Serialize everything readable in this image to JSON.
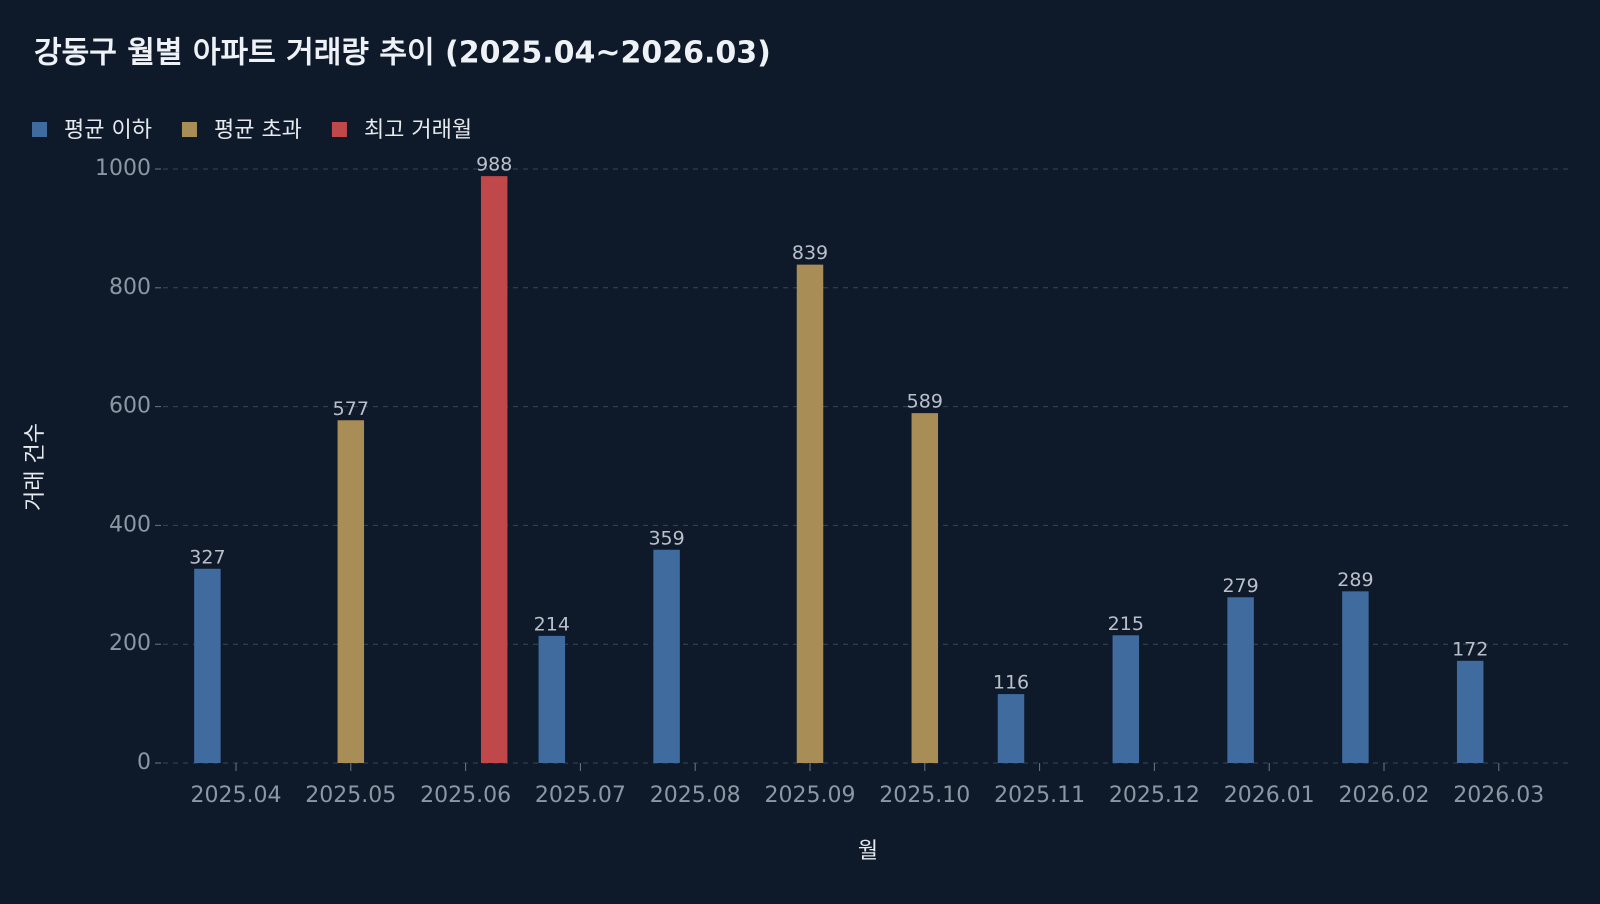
{
  "chart_data": {
    "type": "bar",
    "title": "강동구 월별 아파트 거래량 추이 (2025.04~2026.03)",
    "x_label": "월",
    "y_label": "거래 건수",
    "categories": [
      "2025.04",
      "2025.05",
      "2025.06",
      "2025.07",
      "2025.08",
      "2025.09",
      "2025.10",
      "2025.11",
      "2025.12",
      "2026.01",
      "2026.02",
      "2026.03"
    ],
    "series": [
      {
        "name": "평균 이하",
        "color": "#3f6b9e",
        "values": [
          327,
          null,
          null,
          214,
          359,
          null,
          null,
          116,
          215,
          279,
          289,
          172
        ]
      },
      {
        "name": "평균 초과",
        "color": "#a88d56",
        "values": [
          null,
          577,
          null,
          null,
          null,
          839,
          589,
          null,
          null,
          null,
          null,
          null
        ]
      },
      {
        "name": "최고 거래월",
        "color": "#c0484b",
        "values": [
          null,
          null,
          988,
          null,
          null,
          null,
          null,
          null,
          null,
          null,
          null,
          null
        ]
      }
    ],
    "ylim": [
      0,
      1000
    ],
    "yticks": [
      0,
      200,
      400,
      600,
      800,
      1000
    ],
    "grid": true
  }
}
